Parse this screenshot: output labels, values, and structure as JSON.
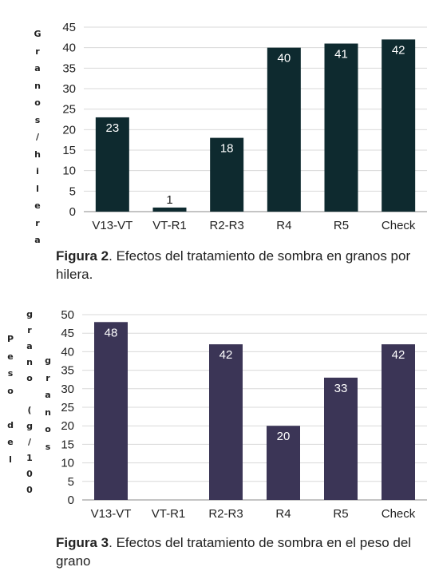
{
  "chart_data": [
    {
      "type": "bar",
      "ylabel": "Granos/hilera",
      "categories": [
        "V13-VT",
        "VT-R1",
        "R2-R3",
        "R4",
        "R5",
        "Check"
      ],
      "values": [
        23,
        1,
        18,
        40,
        41,
        42
      ],
      "ylim": [
        0,
        45
      ],
      "yticks": [
        0,
        5,
        10,
        15,
        20,
        25,
        30,
        35,
        40,
        45
      ],
      "bar_color": "#0e2a2f",
      "grid": true
    },
    {
      "type": "bar",
      "ylabel": "peso del grano (g/100 granos)",
      "categories": [
        "V13-VT",
        "VT-R1",
        "R2-R3",
        "R4",
        "R5",
        "Check"
      ],
      "values": [
        48,
        null,
        42,
        20,
        33,
        42
      ],
      "ylim": [
        0,
        50
      ],
      "yticks": [
        0,
        5,
        10,
        15,
        20,
        25,
        30,
        35,
        40,
        45,
        50
      ],
      "bar_color": "#3b3556",
      "grid": true
    }
  ],
  "captions": [
    {
      "label": "Figura 2",
      "text": ". Efectos del tratamiento de sombra en granos por hilera."
    },
    {
      "label": "Figura 3",
      "text": ". Efectos del tratamiento de sombra en el peso del grano"
    }
  ],
  "ylabel_columns": {
    "chart1": [
      "G",
      "r",
      "a",
      "n",
      "o",
      "s",
      "/",
      "h",
      "i",
      "l",
      "e",
      "r",
      "a"
    ],
    "chart2_left": [
      "P",
      "e",
      "s",
      "o",
      "",
      "d",
      "e",
      "l"
    ],
    "chart2_mid": [
      "g",
      "r",
      "a",
      "n",
      "o",
      "",
      "(",
      "g",
      "/",
      "1",
      "0",
      "0"
    ],
    "chart2_right": [
      "g",
      "r",
      "a",
      "n",
      "o",
      "s"
    ]
  }
}
